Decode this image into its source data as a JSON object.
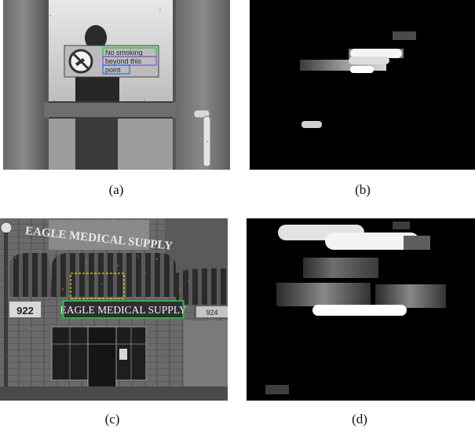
{
  "figure": {
    "captions": [
      "(a)",
      "(b)",
      "(c)",
      "(d)"
    ]
  },
  "panel_a": {
    "sign_lines": [
      "No smoking",
      "beyond this",
      "point"
    ]
  },
  "panel_c": {
    "store_sign": "EAGLE MEDICAL SUPPLY",
    "roof_sign": "EAGLE MEDICAL SUPPLY",
    "number_left": "922",
    "number_right": "924"
  },
  "colors": {
    "detect_green": "#22c93a",
    "detect_yellow": "#e8d21a",
    "detect_cyan": "#27c2c9",
    "map_bg": "#000000"
  }
}
